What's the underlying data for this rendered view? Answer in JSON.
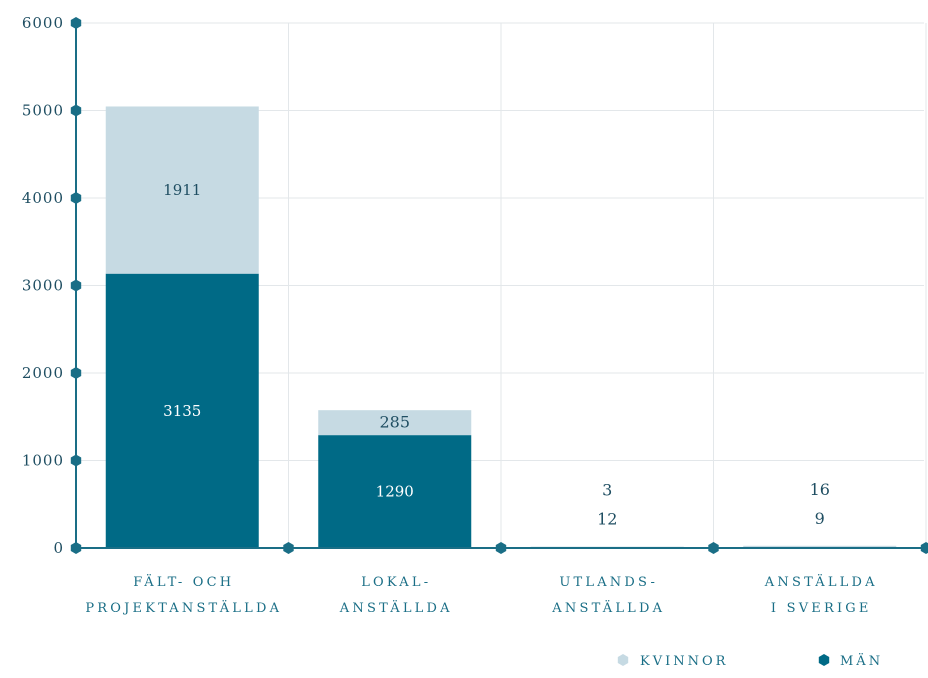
{
  "chart_data": {
    "type": "bar",
    "stacked": true,
    "categories": [
      [
        "FÄLT- OCH",
        "PROJEKTANSTÄLLDA"
      ],
      [
        "LOKAL-",
        "ANSTÄLLDA"
      ],
      [
        "UTLANDS-",
        "ANSTÄLLDA"
      ],
      [
        "ANSTÄLLDA",
        "I SVERIGE"
      ]
    ],
    "series": [
      {
        "name": "MÄN",
        "values": [
          3135,
          1290,
          12,
          9
        ],
        "color": "#006a86"
      },
      {
        "name": "KVINNOR",
        "values": [
          1911,
          285,
          3,
          16
        ],
        "color": "#c6dae3"
      }
    ],
    "yticks": [
      "0",
      "1000",
      "2000",
      "3000",
      "4000",
      "5000",
      "6000"
    ],
    "ylim": [
      0,
      6000
    ],
    "grid": true,
    "legend_position": "bottom-right",
    "colors": {
      "axis": "#1a6e86",
      "grid": "#e3e7ea",
      "label_dark": "#1f4e62"
    }
  }
}
